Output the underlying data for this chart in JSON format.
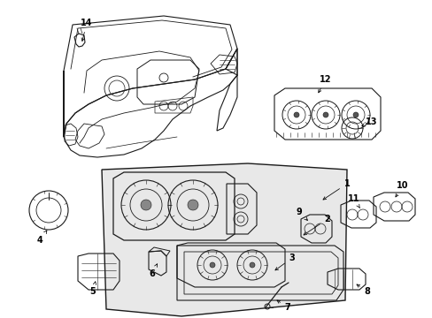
{
  "background_color": "#ffffff",
  "line_color": "#1a1a1a",
  "fig_width": 4.89,
  "fig_height": 3.6,
  "dpi": 100,
  "label_specs": [
    [
      "1",
      385,
      205,
      360,
      230
    ],
    [
      "2",
      370,
      240,
      340,
      260
    ],
    [
      "3",
      330,
      285,
      305,
      300
    ],
    [
      "4",
      62,
      252,
      62,
      235
    ],
    [
      "5",
      105,
      318,
      105,
      305
    ],
    [
      "6",
      178,
      300,
      178,
      290
    ],
    [
      "7",
      332,
      340,
      332,
      340
    ],
    [
      "8",
      405,
      320,
      390,
      310
    ],
    [
      "9",
      340,
      240,
      355,
      253
    ],
    [
      "10",
      450,
      215,
      440,
      228
    ],
    [
      "11",
      400,
      228,
      413,
      240
    ],
    [
      "12",
      365,
      92,
      355,
      112
    ],
    [
      "13",
      415,
      145,
      400,
      145
    ],
    [
      "14",
      100,
      28,
      95,
      50
    ]
  ]
}
